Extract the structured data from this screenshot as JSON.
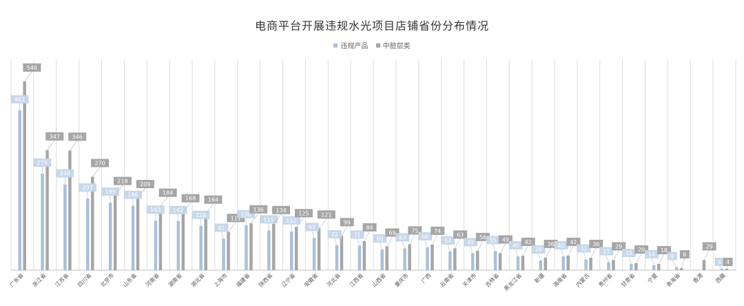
{
  "chart_data": {
    "type": "bar",
    "title": "电商平台开展违规水光项目店铺省份分布情况",
    "categories": [
      "广东省",
      "浙江省",
      "江苏省",
      "四川省",
      "北京市",
      "山东省",
      "河南省",
      "湖南省",
      "湖北省",
      "上海市",
      "福建省",
      "陕西省",
      "辽宁省",
      "安徽省",
      "河北省",
      "江西省",
      "山西省",
      "重庆市",
      "广西",
      "云南省",
      "天津市",
      "吉林省",
      "黑龙江省",
      "新疆",
      "海南省",
      "内蒙古",
      "贵州省",
      "甘肃省",
      "宁夏",
      "青海省",
      "香港",
      "西藏"
    ],
    "series": [
      {
        "name": "违规产品",
        "color": "#a9c1da",
        "label_bg": "#c7d8ea",
        "label_color": "#ffffff",
        "values": [
          462,
          279,
          248,
          207,
          195,
          186,
          143,
          142,
          128,
          91,
          130,
          115,
          112,
          93,
          72,
          71,
          60,
          63,
          66,
          54,
          49,
          55,
          40,
          28,
          40,
          31,
          23,
          18,
          14,
          9,
          null,
          4
        ]
      },
      {
        "name": "中脏层类",
        "color": "#a6a6a6",
        "label_bg": "#a6a6a6",
        "label_color": "#ffffff",
        "values": [
          546,
          347,
          346,
          270,
          218,
          209,
          184,
          168,
          164,
          111,
          136,
          134,
          125,
          121,
          99,
          84,
          69,
          75,
          74,
          63,
          56,
          49,
          42,
          36,
          42,
          36,
          29,
          20,
          18,
          6,
          29,
          4
        ]
      }
    ],
    "ylim": [
      0,
      560
    ],
    "grid": "vertical",
    "legend_position": "top-center"
  }
}
